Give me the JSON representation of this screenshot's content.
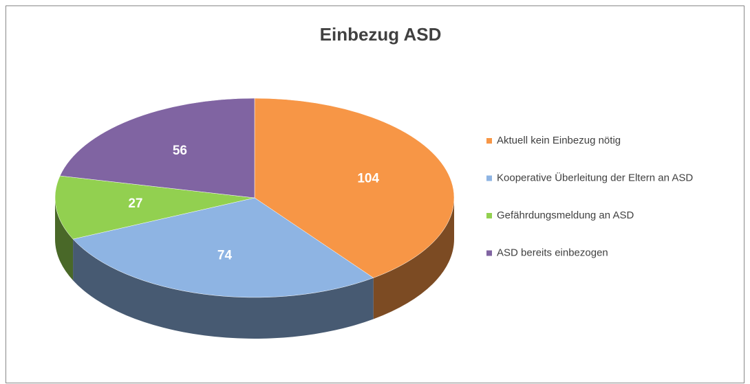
{
  "chart_data": {
    "type": "pie",
    "title": "Einbezug ASD",
    "categories": [
      "Aktuell kein Einbezug nötig",
      "Kooperative Überleitung der Eltern an ASD",
      "Gefährdungsmeldung an ASD",
      "ASD bereits einbezogen"
    ],
    "values": [
      104,
      74,
      27,
      56
    ],
    "colors": [
      "#f79646",
      "#8eb4e3",
      "#92d050",
      "#8064a2"
    ],
    "legend": "right"
  }
}
